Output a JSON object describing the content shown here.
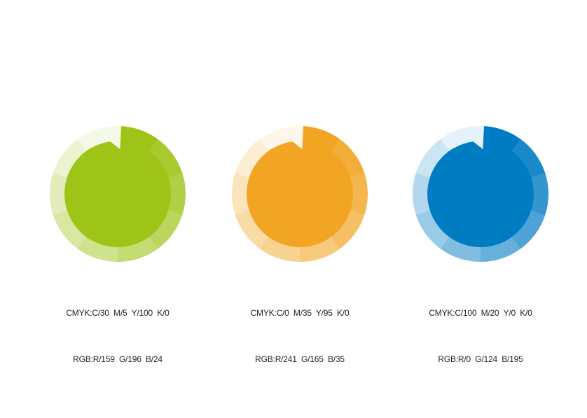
{
  "page": {
    "background": "#ffffff",
    "text_color": "#231f20",
    "description": "Brand color palette diagram: three tint-ring circles with CMYK and RGB specifications"
  },
  "ring": {
    "segment_count": 10,
    "segment_angle_deg": 36,
    "start": "top",
    "direction": "clockwise",
    "tint_percents": [
      100,
      90,
      80,
      70,
      60,
      50,
      40,
      30,
      20,
      10
    ],
    "disc_radius_ratio": 0.78,
    "notch": {
      "start_deg": -30,
      "step_deg": 3,
      "tooth_start_deg": -8,
      "inner_ratio": 0.66
    }
  },
  "swatches": [
    {
      "name": "green",
      "main_color": "#9FC418",
      "cmyk": "CMYK:C/30  M/5  Y/100  K/0",
      "rgb": "RGB:R/159  G/196  B/24",
      "tints": [
        "#9FC418",
        "#A9CA2F",
        "#B2D046",
        "#BCD65D",
        "#C5DC74",
        "#CFE28C",
        "#D9E7A3",
        "#E2EDBA",
        "#ECF3D1",
        "#F5F9E8"
      ]
    },
    {
      "name": "orange",
      "main_color": "#F1A523",
      "cmyk": "CMYK:C/0  M/35  Y/95  K/0",
      "rgb": "RGB:R/241  G/165  B/35",
      "tints": [
        "#F1A523",
        "#F2AE39",
        "#F4B74F",
        "#F5C065",
        "#F7C97B",
        "#F8D291",
        "#F9DBA7",
        "#FBE4BD",
        "#FCEDD3",
        "#FEF6E9"
      ]
    },
    {
      "name": "blue",
      "main_color": "#007CC3",
      "cmyk": "CMYK:C/100  M/20  Y/0  K/0",
      "rgb": "RGB:R/0  G/124  B/195",
      "tints": [
        "#007CC3",
        "#1A89C9",
        "#3396CF",
        "#4DA3D5",
        "#66B0DB",
        "#80BDE1",
        "#99CBE7",
        "#B3D8ED",
        "#CCE5F3",
        "#E6F2F9"
      ]
    }
  ]
}
